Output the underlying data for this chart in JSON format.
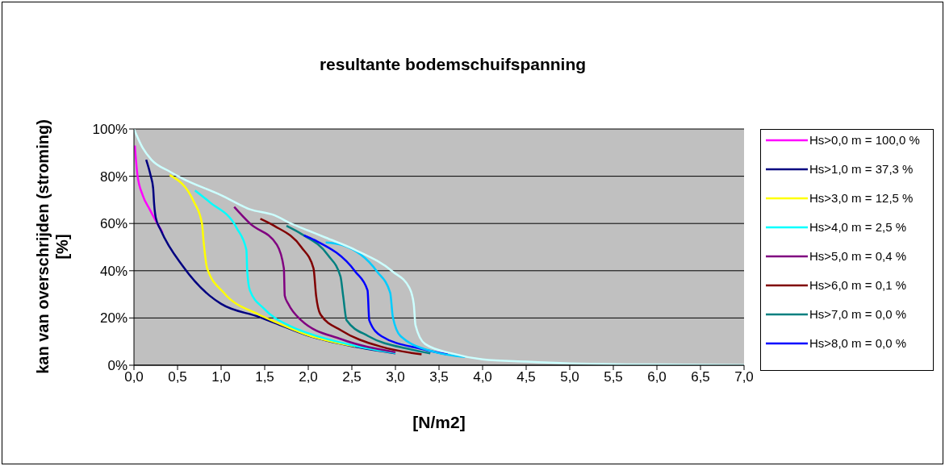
{
  "chart_data": {
    "type": "line",
    "title": "resultante bodemschuifspanning",
    "xlabel": "[N/m2]",
    "ylabel": "kan van overschrijden (stroming) [%]",
    "xlim": [
      0,
      7
    ],
    "ylim": [
      0,
      100
    ],
    "xticks": [
      {
        "value": 0,
        "label": "0,0"
      },
      {
        "value": 0.5,
        "label": "0,5"
      },
      {
        "value": 1,
        "label": "1,0"
      },
      {
        "value": 1.5,
        "label": "1,5"
      },
      {
        "value": 2,
        "label": "2,0"
      },
      {
        "value": 2.5,
        "label": "2,5"
      },
      {
        "value": 3,
        "label": "3,0"
      },
      {
        "value": 3.5,
        "label": "3,5"
      },
      {
        "value": 4,
        "label": "4,0"
      },
      {
        "value": 4.5,
        "label": "4,5"
      },
      {
        "value": 5,
        "label": "5,0"
      },
      {
        "value": 5.5,
        "label": "5,5"
      },
      {
        "value": 6,
        "label": "6,0"
      },
      {
        "value": 6.5,
        "label": "6,5"
      },
      {
        "value": 7,
        "label": "7,0"
      }
    ],
    "yticks": [
      {
        "value": 0,
        "label": "0%"
      },
      {
        "value": 20,
        "label": "20%"
      },
      {
        "value": 40,
        "label": "40%"
      },
      {
        "value": 60,
        "label": "60%"
      },
      {
        "value": 80,
        "label": "80%"
      },
      {
        "value": 100,
        "label": "100%"
      }
    ],
    "grid": "y",
    "legend": "right",
    "series": [
      {
        "name": "Hs>0,0 m = 100,0 %",
        "color": "#ff00ff",
        "x": [
          0.01,
          0.04,
          0.1,
          0.18,
          0.33
        ],
        "values": [
          93,
          80.5,
          72,
          66,
          56
        ]
      },
      {
        "name": "Hs>1,0 m = 37,3 %",
        "color": "#000080",
        "x": [
          0.14,
          0.19,
          0.22,
          0.23,
          0.25,
          0.31,
          0.56,
          0.87,
          1.0,
          1.43,
          1.61,
          2.0,
          2.54,
          3.0
        ],
        "values": [
          87,
          80.5,
          75,
          69,
          62.5,
          57,
          42,
          29.4,
          26,
          20.5,
          18,
          12.5,
          7.8,
          5
        ]
      },
      {
        "name": "Hs>3,0 m = 12,5 %",
        "color": "#ffff00",
        "x": [
          0.41,
          0.69,
          0.78,
          0.8,
          0.84,
          1.03,
          1.43,
          1.61,
          2.0,
          2.54
        ],
        "values": [
          80.5,
          69,
          60,
          52,
          41,
          30.7,
          21.5,
          18.5,
          12.7,
          8
        ]
      },
      {
        "name": "Hs>4,0 m = 2,5 %",
        "color": "#00ffff",
        "x": [
          0.7,
          0.87,
          1.18,
          1.29,
          1.3,
          1.33,
          1.49,
          1.8,
          2.0,
          2.54,
          3.0
        ],
        "values": [
          74,
          69,
          58,
          48.8,
          39.6,
          31.7,
          24,
          16.4,
          13.5,
          8.2,
          5.2
        ]
      },
      {
        "name": "Hs>5,0 m = 0,4 %",
        "color": "#800080",
        "x": [
          1.15,
          1.33,
          1.64,
          1.72,
          1.73,
          1.77,
          1.92,
          2.38,
          3.0
        ],
        "values": [
          67,
          60,
          51,
          41,
          29.4,
          26,
          19,
          11,
          5.5
        ]
      },
      {
        "name": "Hs>6,0 m = 0,1 %",
        "color": "#800000",
        "x": [
          1.45,
          1.61,
          1.92,
          2.06,
          2.09,
          2.14,
          2.38,
          2.84,
          3.3
        ],
        "values": [
          62,
          59,
          50,
          41,
          29.4,
          21.5,
          14.7,
          7.8,
          4.6
        ]
      },
      {
        "name": "Hs>7,0 m = 0,0 %",
        "color": "#008080",
        "x": [
          1.75,
          1.92,
          2.23,
          2.37,
          2.4,
          2.44,
          2.69,
          3.16,
          3.4
        ],
        "values": [
          59,
          55.6,
          46.4,
          37.5,
          29.4,
          19,
          12.3,
          6.8,
          5
        ]
      },
      {
        "name": "Hs>8,0 m = 0,0 %",
        "color": "#0000ff",
        "x": [
          1.95,
          2.07,
          2.54,
          2.68,
          2.7,
          2.84,
          3.31,
          3.6
        ],
        "values": [
          55,
          53,
          39.6,
          31.7,
          19,
          12.3,
          6.8,
          4.5
        ]
      },
      {
        "color": "#00ccff",
        "x": [
          2.2,
          2.38,
          2.79,
          2.94,
          2.97,
          3.06,
          3.46,
          3.8
        ],
        "values": [
          52,
          51,
          39.6,
          30.7,
          20.5,
          12.3,
          5.5,
          3.5
        ]
      },
      {
        "color": "#ccffff",
        "x": [
          0,
          0.1,
          0.2,
          0.41,
          0.56,
          1.0,
          1.33,
          1.61,
          1.8,
          2.0,
          2.2,
          2.54,
          2.97,
          3.16,
          3.21,
          3.23,
          3.34,
          3.65,
          4.0,
          4.5,
          5.0,
          6.0,
          7.0
        ],
        "values": [
          100,
          92,
          87,
          82,
          79,
          72,
          66,
          63.5,
          60,
          57,
          54,
          48.8,
          39.6,
          32.8,
          26,
          17,
          9,
          5,
          2.5,
          1.5,
          0.8,
          0.3,
          0.1
        ]
      }
    ]
  }
}
